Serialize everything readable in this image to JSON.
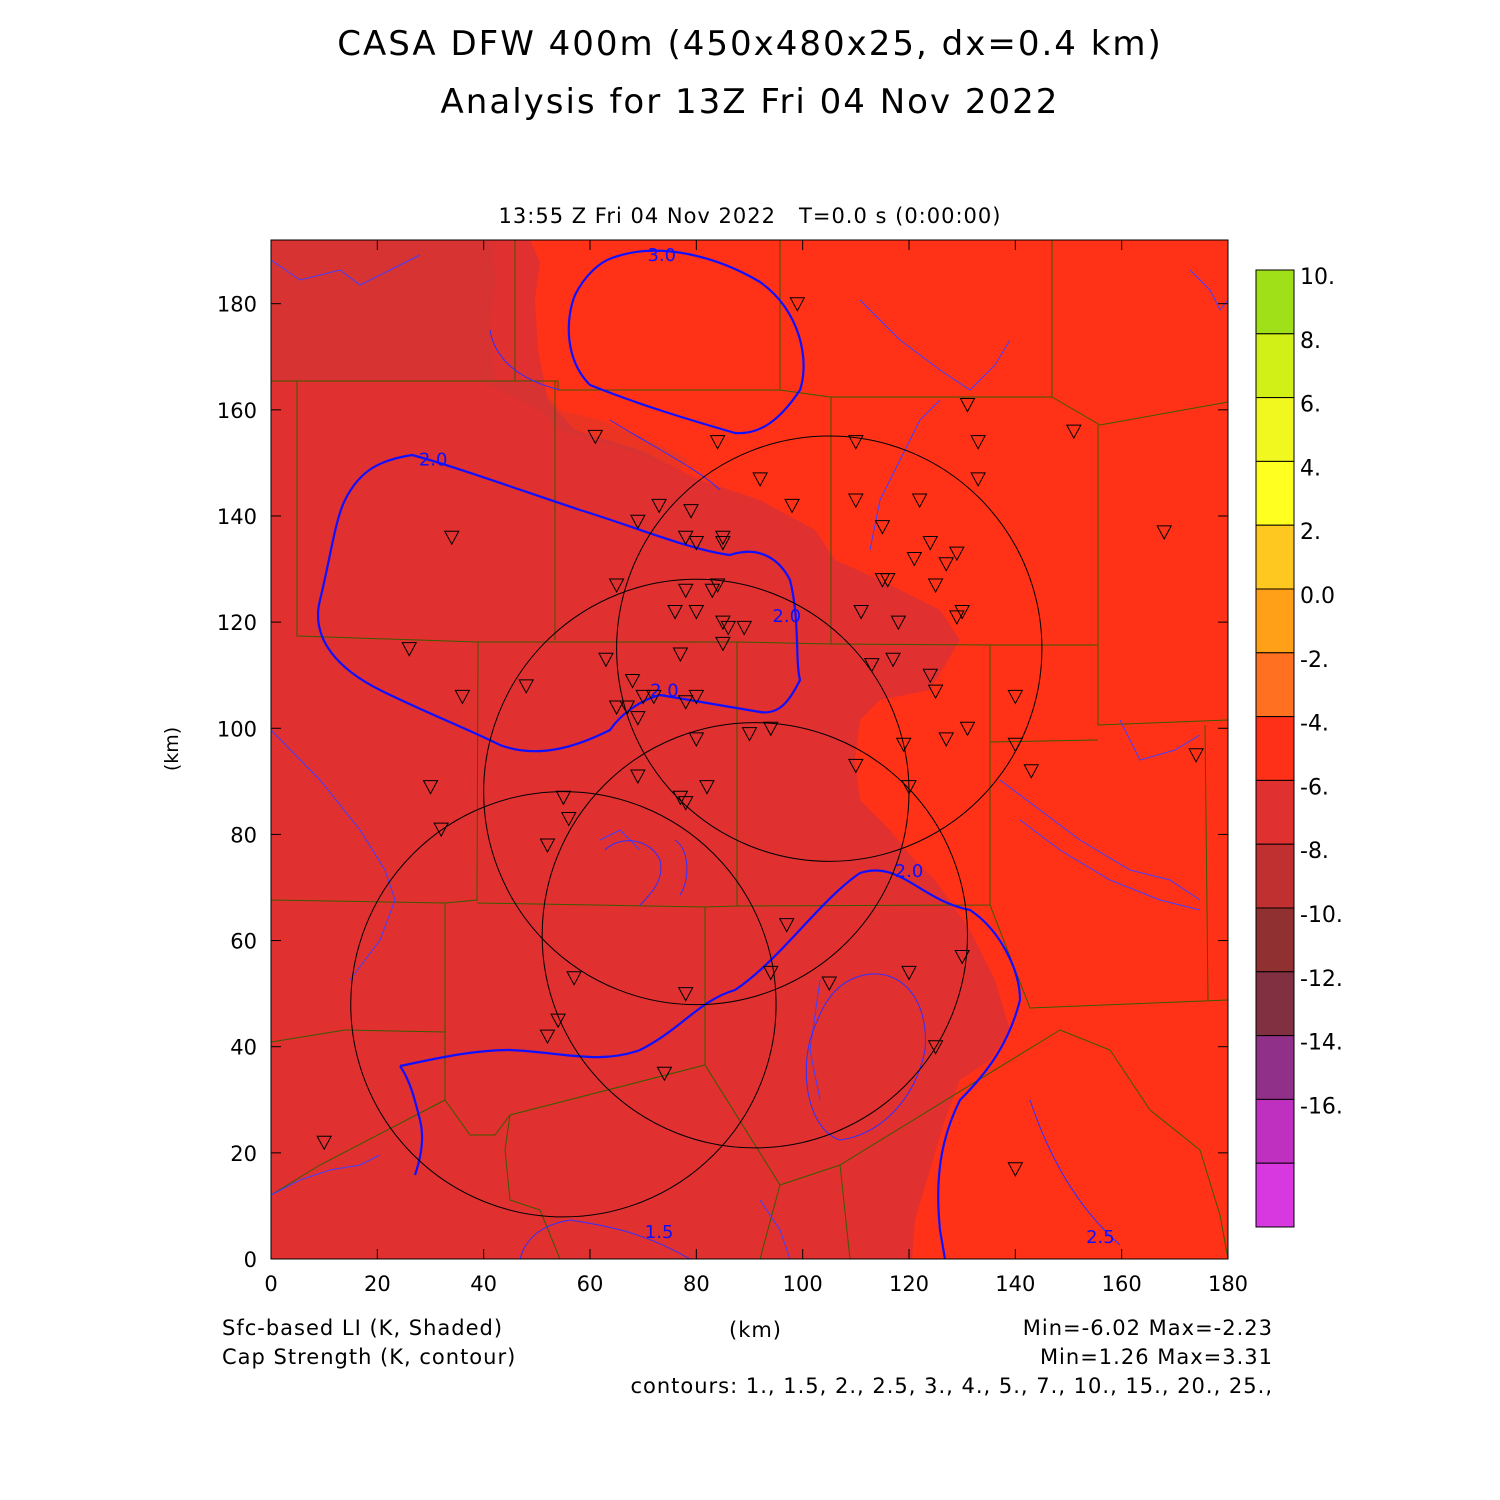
{
  "title": "CASA DFW 400m (450x480x25, dx=0.4 km)",
  "subtitle": "Analysis for 13Z Fri 04 Nov 2022",
  "valid_time": "13:55 Z Fri 04 Nov 2022",
  "forecast_time": "T=0.0 s (0:00:00)",
  "footer": {
    "field1": "Sfc-based LI (K, Shaded)",
    "field2": "Cap Strength (K, contour)",
    "x_unit": "(km)",
    "minmax1": "Min=-6.02 Max=-2.23",
    "minmax2": "Min=1.26 Max=3.31",
    "contours": "contours: 1., 1.5, 2., 2.5, 3., 4., 5., 7., 10., 15., 20., 25.,"
  },
  "chart_data": {
    "type": "heatmap",
    "xlabel": "(km)",
    "ylabel": "(km)",
    "xlim": [
      0,
      180
    ],
    "ylim": [
      0,
      192
    ],
    "x_ticks": [
      "0",
      "20",
      "40",
      "60",
      "80",
      "100",
      "120",
      "140",
      "160",
      "180"
    ],
    "y_ticks": [
      "0",
      "20",
      "40",
      "60",
      "80",
      "100",
      "120",
      "140",
      "160",
      "180"
    ],
    "colorbar": {
      "labels": [
        "10.",
        "8.",
        "6.",
        "4.",
        "2.",
        "0.0",
        "-2.",
        "-4.",
        "-6.",
        "-8.",
        "-10.",
        "-12.",
        "-14.",
        "-16."
      ],
      "colors": [
        "#a0e018",
        "#d0f018",
        "#f0f820",
        "#ffff20",
        "#ffc820",
        "#ffa018",
        "#ff7020",
        "#ff3018",
        "#e03030",
        "#c03030",
        "#903030",
        "#803040",
        "#903088",
        "#c030c0",
        "#d838e0"
      ]
    },
    "field_colors": {
      "warm": "#ff3218",
      "cool": "#e03030",
      "pocket": "#c83a3a"
    },
    "contour_labels": [
      {
        "text": "3.0",
        "x": 73.5,
        "y": 188
      },
      {
        "text": "2.0",
        "x": 30.5,
        "y": 149.5
      },
      {
        "text": "2.0",
        "x": 97,
        "y": 120
      },
      {
        "text": "2.0",
        "x": 74,
        "y": 106
      },
      {
        "text": "2.0",
        "x": 120,
        "y": 72
      },
      {
        "text": "1.5",
        "x": 73,
        "y": 4
      },
      {
        "text": "2.5",
        "x": 156,
        "y": 3
      }
    ],
    "radar_rings_km": [
      {
        "cx": 105,
        "cy": 115,
        "r": 40
      },
      {
        "cx": 80,
        "cy": 88,
        "r": 40
      },
      {
        "cx": 91,
        "cy": 61,
        "r": 40
      },
      {
        "cx": 55,
        "cy": 48,
        "r": 40
      }
    ],
    "stations_km": [
      [
        99,
        180
      ],
      [
        61,
        155
      ],
      [
        84,
        154
      ],
      [
        92,
        147
      ],
      [
        110,
        154
      ],
      [
        131,
        161
      ],
      [
        133,
        154
      ],
      [
        133,
        147
      ],
      [
        151,
        156
      ],
      [
        73,
        142
      ],
      [
        69,
        139
      ],
      [
        79,
        141
      ],
      [
        78,
        136
      ],
      [
        80,
        135
      ],
      [
        85,
        136
      ],
      [
        85,
        135
      ],
      [
        98,
        142
      ],
      [
        110,
        143
      ],
      [
        115,
        138
      ],
      [
        122,
        143
      ],
      [
        168,
        137
      ],
      [
        34,
        136
      ],
      [
        65,
        127
      ],
      [
        78,
        126
      ],
      [
        83,
        126
      ],
      [
        84,
        127
      ],
      [
        116,
        128
      ],
      [
        115,
        128
      ],
      [
        121,
        132
      ],
      [
        124,
        135
      ],
      [
        125,
        127
      ],
      [
        127,
        131
      ],
      [
        129,
        133
      ],
      [
        76,
        122
      ],
      [
        80,
        122
      ],
      [
        85,
        120
      ],
      [
        86,
        119
      ],
      [
        89,
        119
      ],
      [
        85,
        116
      ],
      [
        111,
        122
      ],
      [
        118,
        120
      ],
      [
        130,
        122
      ],
      [
        129,
        121
      ],
      [
        26,
        115
      ],
      [
        63,
        113
      ],
      [
        77,
        114
      ],
      [
        113,
        112
      ],
      [
        117,
        113
      ],
      [
        124,
        110
      ],
      [
        125,
        107
      ],
      [
        36,
        106
      ],
      [
        48,
        108
      ],
      [
        68,
        109
      ],
      [
        65,
        104
      ],
      [
        67,
        104
      ],
      [
        70,
        106
      ],
      [
        72,
        106
      ],
      [
        78,
        105
      ],
      [
        80,
        106
      ],
      [
        69,
        102
      ],
      [
        140,
        106
      ],
      [
        80,
        98
      ],
      [
        90,
        99
      ],
      [
        94,
        100
      ],
      [
        119,
        97
      ],
      [
        127,
        98
      ],
      [
        131,
        100
      ],
      [
        140,
        97
      ],
      [
        143,
        92
      ],
      [
        174,
        95
      ],
      [
        69,
        91
      ],
      [
        82,
        89
      ],
      [
        30,
        89
      ],
      [
        110,
        93
      ],
      [
        120,
        89
      ],
      [
        77,
        87
      ],
      [
        78,
        86
      ],
      [
        55,
        87
      ],
      [
        56,
        83
      ],
      [
        32,
        81
      ],
      [
        52,
        78
      ],
      [
        97,
        63
      ],
      [
        57,
        53
      ],
      [
        94,
        54
      ],
      [
        105,
        52
      ],
      [
        120,
        54
      ],
      [
        130,
        57
      ],
      [
        78,
        50
      ],
      [
        54,
        45
      ],
      [
        52,
        42
      ],
      [
        74,
        35
      ],
      [
        125,
        40
      ],
      [
        10,
        22
      ],
      [
        140,
        17
      ]
    ]
  }
}
